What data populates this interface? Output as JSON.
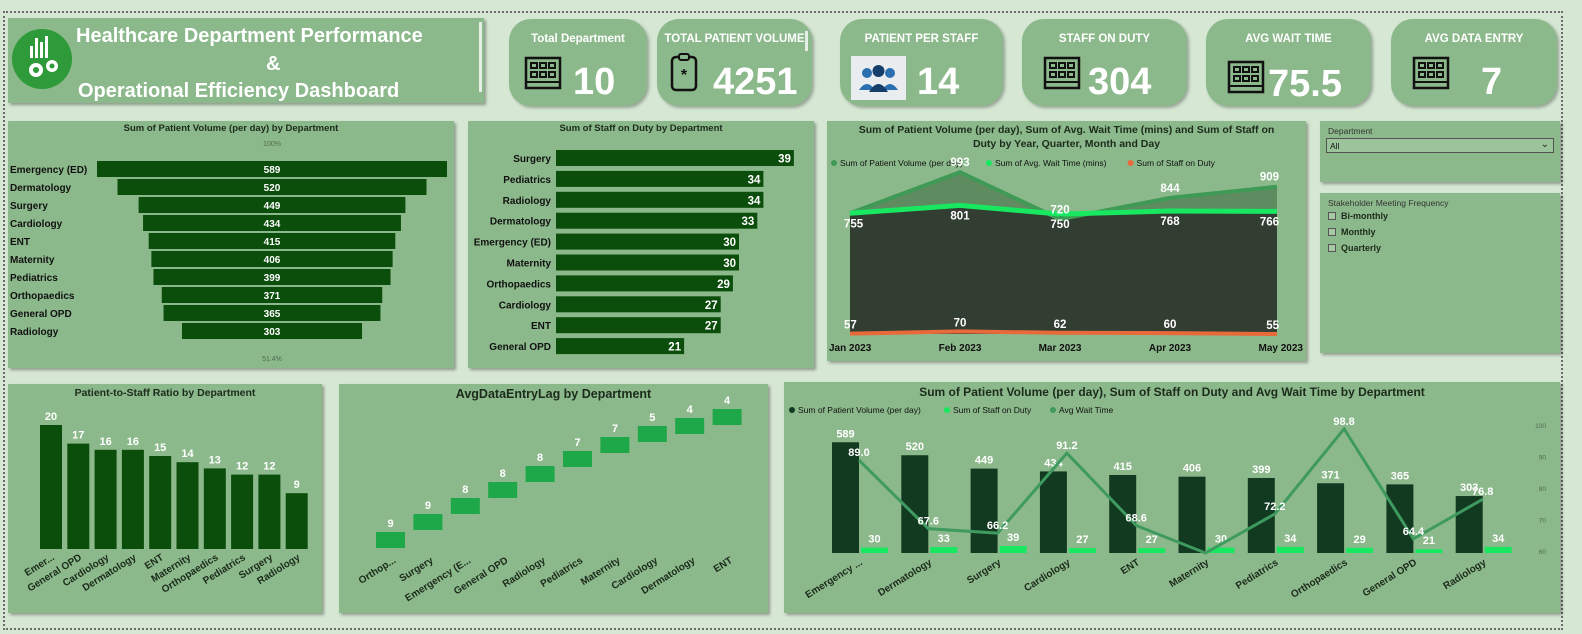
{
  "header": {
    "title_line1": "Healthcare Department Performance",
    "title_line2": "&",
    "title_line3": "Operational Efficiency Dashboard"
  },
  "kpis": [
    {
      "label": "Total Department",
      "value": "10",
      "icon": "building-icon"
    },
    {
      "label": "TOTAL PATIENT VOLUME",
      "value": "4251",
      "icon": "clipboard-icon"
    },
    {
      "label": "PATIENT PER STAFF",
      "value": "14",
      "icon": "staff-group-icon"
    },
    {
      "label": "STAFF ON DUTY",
      "value": "304",
      "icon": "building-icon"
    },
    {
      "label": "AVG WAIT TIME",
      "value": "75.5",
      "icon": "building-icon"
    },
    {
      "label": "AVG DATA ENTRY",
      "value": "7",
      "icon": "building-icon"
    }
  ],
  "slicers": {
    "department": {
      "title": "Department",
      "selected": "All"
    },
    "meeting": {
      "title": "Stakeholder Meeting Frequency",
      "options": [
        "Bi-monthly",
        "Monthly",
        "Quarterly"
      ]
    }
  },
  "chart_data": [
    {
      "id": "funnel",
      "type": "bar",
      "title": "Sum of Patient Volume (per day) by Department",
      "top_label": "100%",
      "bottom_label": "51.4%",
      "categories": [
        "Emergency (ED)",
        "Dermatology",
        "Surgery",
        "Cardiology",
        "ENT",
        "Maternity",
        "Pediatrics",
        "Orthopaedics",
        "General OPD",
        "Radiology"
      ],
      "values": [
        589,
        520,
        449,
        434,
        415,
        406,
        399,
        371,
        365,
        303
      ],
      "color": "#0b4d0b"
    },
    {
      "id": "staff",
      "type": "bar",
      "title": "Sum of Staff on Duty by Department",
      "categories": [
        "Surgery",
        "Pediatrics",
        "Radiology",
        "Dermatology",
        "Emergency (ED)",
        "Maternity",
        "Orthopaedics",
        "Cardiology",
        "ENT",
        "General OPD"
      ],
      "values": [
        39,
        34,
        34,
        33,
        30,
        30,
        29,
        27,
        27,
        21
      ],
      "color": "#0b4d0b"
    },
    {
      "id": "trend",
      "type": "area",
      "title_line1": "Sum of Patient Volume (per day), Sum of Avg. Wait Time (mins) and Sum of Staff on",
      "title_line2": "Duty by Year, Quarter, Month and Day",
      "x": [
        "Jan 2023",
        "Feb 2023",
        "Mar 2023",
        "Apr 2023",
        "May 2023"
      ],
      "series": [
        {
          "name": "Sum of Patient Volume (per day)",
          "values": [
            755,
            993,
            720,
            844,
            909
          ],
          "color": "#3f9a55"
        },
        {
          "name": "Sum of Avg. Wait Time (mins)",
          "values": [
            755,
            801,
            750,
            768,
            766
          ],
          "color": "#17e860"
        },
        {
          "name": "Sum of Staff on Duty",
          "values": [
            57,
            70,
            62,
            60,
            55
          ],
          "color": "#e86a3a"
        }
      ],
      "point_labels": {
        "volume": [
          "",
          "993",
          "720",
          "844",
          "909"
        ],
        "wait": [
          "755",
          "801",
          "750",
          "768",
          "766"
        ],
        "staff": [
          "57",
          "70",
          "62",
          "60",
          "55"
        ]
      }
    },
    {
      "id": "ratio",
      "type": "bar",
      "title": "Patient-to-Staff Ratio by Department",
      "categories": [
        "Emer...",
        "General OPD",
        "Cardiology",
        "Dermatology",
        "ENT",
        "Maternity",
        "Orthopaedics",
        "Pediatrics",
        "Surgery",
        "Radiology"
      ],
      "values": [
        20,
        17,
        16,
        16,
        15,
        14,
        13,
        12,
        12,
        9
      ],
      "color": "#0b4d0b"
    },
    {
      "id": "lag",
      "type": "bar",
      "title": "AvgDataEntryLag by Department",
      "categories": [
        "Orthop...",
        "Surgery",
        "Emergency (E...",
        "General OPD",
        "Radiology",
        "Pediatrics",
        "Maternity",
        "Cardiology",
        "Dermatology",
        "ENT"
      ],
      "values": [
        9,
        9,
        8,
        8,
        8,
        7,
        7,
        5,
        4,
        4
      ],
      "color": "#1fa84a"
    },
    {
      "id": "combo",
      "type": "bar",
      "title": "Sum of Patient Volume (per day), Sum of Staff on Duty and Avg Wait Time by Department",
      "categories": [
        "Emergency ...",
        "Dermatology",
        "Surgery",
        "Cardiology",
        "ENT",
        "Maternity",
        "Pediatrics",
        "Orthopaedics",
        "General OPD",
        "Radiology"
      ],
      "series": [
        {
          "name": "Sum of Patient Volume (per day)",
          "values": [
            589,
            520,
            449,
            434,
            415,
            406,
            399,
            371,
            365,
            303
          ],
          "color": "#123a20"
        },
        {
          "name": "Sum of Staff on Duty",
          "values": [
            30,
            33,
            39,
            27,
            27,
            30,
            34,
            29,
            21,
            34
          ],
          "color": "#17e860"
        },
        {
          "name": "Avg Wait Time",
          "values": [
            89.0,
            67.6,
            66.2,
            91.2,
            68.6,
            60.0,
            72.2,
            98.8,
            64.4,
            76.8
          ],
          "color": "#3f9a60"
        }
      ],
      "wait_labels": [
        "89.0",
        "67.6",
        "66.2",
        "91.2",
        "68.6",
        "",
        "72.2",
        "98.8",
        "64.4",
        "76.8"
      ],
      "y2_ticks": [
        "100",
        "90",
        "80",
        "70",
        "60"
      ],
      "y2_range": [
        60,
        100
      ]
    }
  ]
}
